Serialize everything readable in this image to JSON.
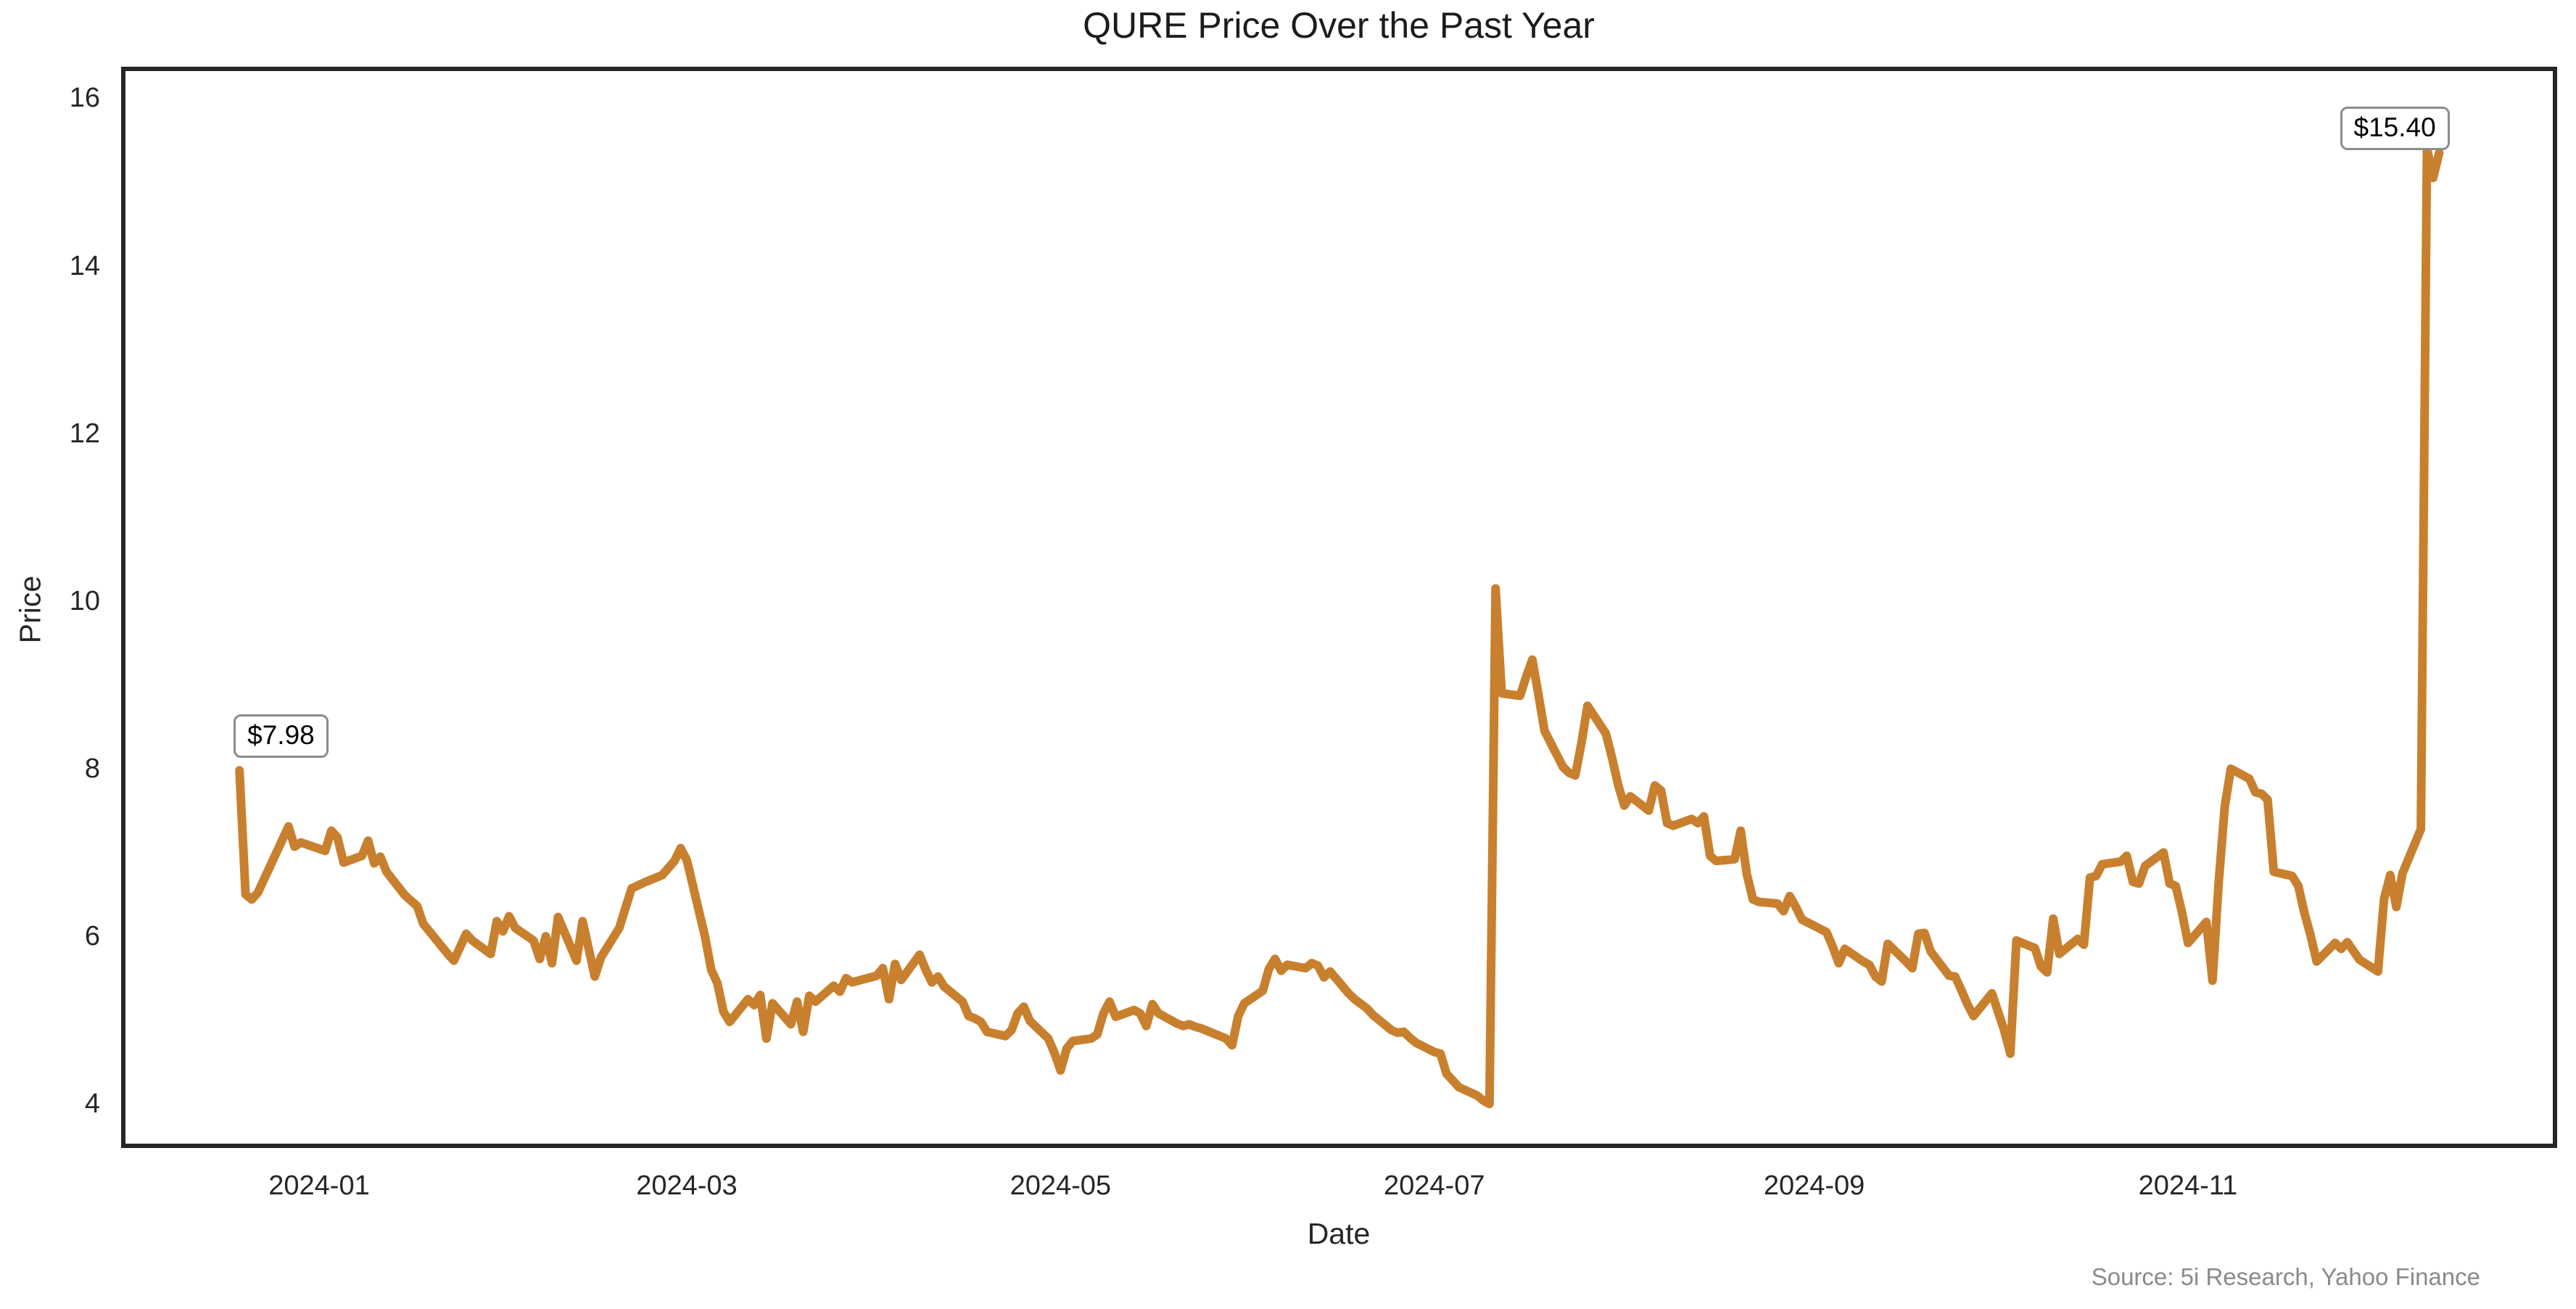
{
  "chart_data": {
    "type": "line",
    "title": "QURE Price Over the Past Year",
    "xlabel": "Date",
    "ylabel": "Price",
    "source_note": "Source: 5i Research, Yahoo Finance",
    "line_color": "#C8802F",
    "axis_color": "#262626",
    "background_color": "#ffffff",
    "grid": false,
    "legend": null,
    "ylim": [
      3.5,
      16.35
    ],
    "yticks": [
      4,
      6,
      8,
      10,
      12,
      14,
      16
    ],
    "xticks": [
      {
        "label": "2024-01",
        "date": "2024-01-01"
      },
      {
        "label": "2024-03",
        "date": "2024-03-01"
      },
      {
        "label": "2024-05",
        "date": "2024-05-01"
      },
      {
        "label": "2024-07",
        "date": "2024-07-01"
      },
      {
        "label": "2024-09",
        "date": "2024-09-01"
      },
      {
        "label": "2024-11",
        "date": "2024-11-01"
      }
    ],
    "annotations": [
      {
        "label": "$7.98",
        "date": "2023-12-19",
        "value": 7.98
      },
      {
        "label": "$15.40",
        "date": "2024-12-10",
        "value": 15.4
      }
    ],
    "series": [
      {
        "name": "QURE",
        "points": [
          [
            "2023-12-19",
            7.98
          ],
          [
            "2023-12-20",
            6.5
          ],
          [
            "2023-12-21",
            6.44
          ],
          [
            "2023-12-22",
            6.52
          ],
          [
            "2023-12-27",
            7.31
          ],
          [
            "2023-12-28",
            7.07
          ],
          [
            "2023-12-29",
            7.12
          ],
          [
            "2024-01-02",
            7.02
          ],
          [
            "2024-01-03",
            7.26
          ],
          [
            "2024-01-04",
            7.18
          ],
          [
            "2024-01-05",
            6.88
          ],
          [
            "2024-01-08",
            6.96
          ],
          [
            "2024-01-09",
            7.14
          ],
          [
            "2024-01-10",
            6.87
          ],
          [
            "2024-01-11",
            6.95
          ],
          [
            "2024-01-12",
            6.77
          ],
          [
            "2024-01-15",
            6.49
          ],
          [
            "2024-01-17",
            6.36
          ],
          [
            "2024-01-18",
            6.15
          ],
          [
            "2024-01-19",
            6.06
          ],
          [
            "2024-01-22",
            5.79
          ],
          [
            "2024-01-23",
            5.71
          ],
          [
            "2024-01-25",
            6.03
          ],
          [
            "2024-01-26",
            5.95
          ],
          [
            "2024-01-29",
            5.79
          ],
          [
            "2024-01-30",
            6.18
          ],
          [
            "2024-01-31",
            6.06
          ],
          [
            "2024-02-01",
            6.24
          ],
          [
            "2024-02-02",
            6.1
          ],
          [
            "2024-02-05",
            5.95
          ],
          [
            "2024-02-06",
            5.73
          ],
          [
            "2024-02-07",
            6.0
          ],
          [
            "2024-02-08",
            5.68
          ],
          [
            "2024-02-09",
            6.23
          ],
          [
            "2024-02-12",
            5.71
          ],
          [
            "2024-02-13",
            6.18
          ],
          [
            "2024-02-14",
            5.85
          ],
          [
            "2024-02-15",
            5.52
          ],
          [
            "2024-02-16",
            5.75
          ],
          [
            "2024-02-19",
            6.1
          ],
          [
            "2024-02-20",
            6.34
          ],
          [
            "2024-02-21",
            6.57
          ],
          [
            "2024-02-23",
            6.64
          ],
          [
            "2024-02-26",
            6.73
          ],
          [
            "2024-02-28",
            6.9
          ],
          [
            "2024-02-29",
            7.05
          ],
          [
            "2024-03-01",
            6.91
          ],
          [
            "2024-03-04",
            5.99
          ],
          [
            "2024-03-05",
            5.6
          ],
          [
            "2024-03-06",
            5.44
          ],
          [
            "2024-03-07",
            5.1
          ],
          [
            "2024-03-08",
            4.98
          ],
          [
            "2024-03-11",
            5.25
          ],
          [
            "2024-03-12",
            5.18
          ],
          [
            "2024-03-13",
            5.3
          ],
          [
            "2024-03-14",
            4.78
          ],
          [
            "2024-03-15",
            5.2
          ],
          [
            "2024-03-18",
            4.95
          ],
          [
            "2024-03-19",
            5.22
          ],
          [
            "2024-03-20",
            4.86
          ],
          [
            "2024-03-21",
            5.29
          ],
          [
            "2024-03-22",
            5.22
          ],
          [
            "2024-03-25",
            5.41
          ],
          [
            "2024-03-26",
            5.34
          ],
          [
            "2024-03-27",
            5.5
          ],
          [
            "2024-03-28",
            5.45
          ],
          [
            "2024-04-01",
            5.53
          ],
          [
            "2024-04-02",
            5.62
          ],
          [
            "2024-04-03",
            5.25
          ],
          [
            "2024-04-04",
            5.67
          ],
          [
            "2024-04-05",
            5.48
          ],
          [
            "2024-04-08",
            5.78
          ],
          [
            "2024-04-09",
            5.6
          ],
          [
            "2024-04-10",
            5.45
          ],
          [
            "2024-04-11",
            5.52
          ],
          [
            "2024-04-12",
            5.4
          ],
          [
            "2024-04-15",
            5.22
          ],
          [
            "2024-04-16",
            5.05
          ],
          [
            "2024-04-17",
            5.02
          ],
          [
            "2024-04-18",
            4.98
          ],
          [
            "2024-04-19",
            4.86
          ],
          [
            "2024-04-22",
            4.81
          ],
          [
            "2024-04-23",
            4.88
          ],
          [
            "2024-04-24",
            5.08
          ],
          [
            "2024-04-25",
            5.16
          ],
          [
            "2024-04-26",
            4.99
          ],
          [
            "2024-04-29",
            4.78
          ],
          [
            "2024-04-30",
            4.61
          ],
          [
            "2024-05-01",
            4.4
          ],
          [
            "2024-05-02",
            4.66
          ],
          [
            "2024-05-03",
            4.75
          ],
          [
            "2024-05-06",
            4.78
          ],
          [
            "2024-05-07",
            4.83
          ],
          [
            "2024-05-08",
            5.08
          ],
          [
            "2024-05-09",
            5.22
          ],
          [
            "2024-05-10",
            5.04
          ],
          [
            "2024-05-13",
            5.12
          ],
          [
            "2024-05-14",
            5.08
          ],
          [
            "2024-05-15",
            4.93
          ],
          [
            "2024-05-16",
            5.19
          ],
          [
            "2024-05-17",
            5.08
          ],
          [
            "2024-05-20",
            4.96
          ],
          [
            "2024-05-21",
            4.93
          ],
          [
            "2024-05-22",
            4.95
          ],
          [
            "2024-05-23",
            4.92
          ],
          [
            "2024-05-24",
            4.9
          ],
          [
            "2024-05-28",
            4.78
          ],
          [
            "2024-05-29",
            4.7
          ],
          [
            "2024-05-30",
            5.05
          ],
          [
            "2024-05-31",
            5.2
          ],
          [
            "2024-06-03",
            5.35
          ],
          [
            "2024-06-04",
            5.61
          ],
          [
            "2024-06-05",
            5.73
          ],
          [
            "2024-06-06",
            5.59
          ],
          [
            "2024-06-07",
            5.66
          ],
          [
            "2024-06-10",
            5.62
          ],
          [
            "2024-06-11",
            5.68
          ],
          [
            "2024-06-12",
            5.65
          ],
          [
            "2024-06-13",
            5.51
          ],
          [
            "2024-06-14",
            5.58
          ],
          [
            "2024-06-17",
            5.32
          ],
          [
            "2024-06-18",
            5.25
          ],
          [
            "2024-06-20",
            5.14
          ],
          [
            "2024-06-21",
            5.06
          ],
          [
            "2024-06-24",
            4.88
          ],
          [
            "2024-06-25",
            4.85
          ],
          [
            "2024-06-26",
            4.86
          ],
          [
            "2024-06-27",
            4.79
          ],
          [
            "2024-06-28",
            4.73
          ],
          [
            "2024-07-01",
            4.62
          ],
          [
            "2024-07-02",
            4.6
          ],
          [
            "2024-07-03",
            4.36
          ],
          [
            "2024-07-05",
            4.2
          ],
          [
            "2024-07-08",
            4.1
          ],
          [
            "2024-07-09",
            4.04
          ],
          [
            "2024-07-10",
            4.0
          ],
          [
            "2024-07-11",
            10.15
          ],
          [
            "2024-07-12",
            8.9
          ],
          [
            "2024-07-15",
            8.87
          ],
          [
            "2024-07-16",
            9.1
          ],
          [
            "2024-07-17",
            9.3
          ],
          [
            "2024-07-18",
            8.88
          ],
          [
            "2024-07-19",
            8.45
          ],
          [
            "2024-07-22",
            8.02
          ],
          [
            "2024-07-23",
            7.95
          ],
          [
            "2024-07-24",
            7.92
          ],
          [
            "2024-07-25",
            8.3
          ],
          [
            "2024-07-26",
            8.75
          ],
          [
            "2024-07-29",
            8.42
          ],
          [
            "2024-07-30",
            8.13
          ],
          [
            "2024-07-31",
            7.81
          ],
          [
            "2024-08-01",
            7.56
          ],
          [
            "2024-08-02",
            7.67
          ],
          [
            "2024-08-05",
            7.5
          ],
          [
            "2024-08-06",
            7.8
          ],
          [
            "2024-08-07",
            7.74
          ],
          [
            "2024-08-08",
            7.35
          ],
          [
            "2024-08-09",
            7.32
          ],
          [
            "2024-08-12",
            7.4
          ],
          [
            "2024-08-13",
            7.35
          ],
          [
            "2024-08-14",
            7.43
          ],
          [
            "2024-08-15",
            6.96
          ],
          [
            "2024-08-16",
            6.9
          ],
          [
            "2024-08-19",
            6.92
          ],
          [
            "2024-08-20",
            7.26
          ],
          [
            "2024-08-21",
            6.74
          ],
          [
            "2024-08-22",
            6.44
          ],
          [
            "2024-08-23",
            6.41
          ],
          [
            "2024-08-26",
            6.39
          ],
          [
            "2024-08-27",
            6.3
          ],
          [
            "2024-08-28",
            6.48
          ],
          [
            "2024-08-29",
            6.35
          ],
          [
            "2024-08-30",
            6.2
          ],
          [
            "2024-09-03",
            6.05
          ],
          [
            "2024-09-04",
            5.88
          ],
          [
            "2024-09-05",
            5.68
          ],
          [
            "2024-09-06",
            5.85
          ],
          [
            "2024-09-09",
            5.7
          ],
          [
            "2024-09-10",
            5.66
          ],
          [
            "2024-09-11",
            5.52
          ],
          [
            "2024-09-12",
            5.46
          ],
          [
            "2024-09-13",
            5.91
          ],
          [
            "2024-09-16",
            5.7
          ],
          [
            "2024-09-17",
            5.62
          ],
          [
            "2024-09-18",
            6.03
          ],
          [
            "2024-09-19",
            6.04
          ],
          [
            "2024-09-20",
            5.82
          ],
          [
            "2024-09-23",
            5.53
          ],
          [
            "2024-09-24",
            5.52
          ],
          [
            "2024-09-25",
            5.36
          ],
          [
            "2024-09-26",
            5.19
          ],
          [
            "2024-09-27",
            5.05
          ],
          [
            "2024-09-30",
            5.32
          ],
          [
            "2024-10-01",
            5.1
          ],
          [
            "2024-10-02",
            4.88
          ],
          [
            "2024-10-03",
            4.6
          ],
          [
            "2024-10-04",
            5.95
          ],
          [
            "2024-10-07",
            5.86
          ],
          [
            "2024-10-08",
            5.64
          ],
          [
            "2024-10-09",
            5.57
          ],
          [
            "2024-10-10",
            6.21
          ],
          [
            "2024-10-11",
            5.79
          ],
          [
            "2024-10-14",
            5.97
          ],
          [
            "2024-10-15",
            5.9
          ],
          [
            "2024-10-16",
            6.7
          ],
          [
            "2024-10-17",
            6.72
          ],
          [
            "2024-10-18",
            6.86
          ],
          [
            "2024-10-21",
            6.89
          ],
          [
            "2024-10-22",
            6.96
          ],
          [
            "2024-10-23",
            6.65
          ],
          [
            "2024-10-24",
            6.63
          ],
          [
            "2024-10-25",
            6.84
          ],
          [
            "2024-10-28",
            7.0
          ],
          [
            "2024-10-29",
            6.63
          ],
          [
            "2024-10-30",
            6.6
          ],
          [
            "2024-10-31",
            6.29
          ],
          [
            "2024-11-01",
            5.92
          ],
          [
            "2024-11-04",
            6.17
          ],
          [
            "2024-11-05",
            5.47
          ],
          [
            "2024-11-06",
            6.63
          ],
          [
            "2024-11-07",
            7.55
          ],
          [
            "2024-11-08",
            8.0
          ],
          [
            "2024-11-11",
            7.88
          ],
          [
            "2024-11-12",
            7.72
          ],
          [
            "2024-11-13",
            7.7
          ],
          [
            "2024-11-14",
            7.63
          ],
          [
            "2024-11-15",
            6.77
          ],
          [
            "2024-11-18",
            6.72
          ],
          [
            "2024-11-19",
            6.6
          ],
          [
            "2024-11-20",
            6.28
          ],
          [
            "2024-11-21",
            6.01
          ],
          [
            "2024-11-22",
            5.7
          ],
          [
            "2024-11-25",
            5.92
          ],
          [
            "2024-11-26",
            5.85
          ],
          [
            "2024-11-27",
            5.93
          ],
          [
            "2024-11-29",
            5.72
          ],
          [
            "2024-12-02",
            5.58
          ],
          [
            "2024-12-03",
            6.45
          ],
          [
            "2024-12-04",
            6.73
          ],
          [
            "2024-12-05",
            6.35
          ],
          [
            "2024-12-06",
            6.75
          ],
          [
            "2024-12-09",
            7.28
          ],
          [
            "2024-12-10",
            15.4
          ],
          [
            "2024-12-11",
            15.05
          ],
          [
            "2024-12-12",
            15.35
          ]
        ]
      }
    ]
  }
}
